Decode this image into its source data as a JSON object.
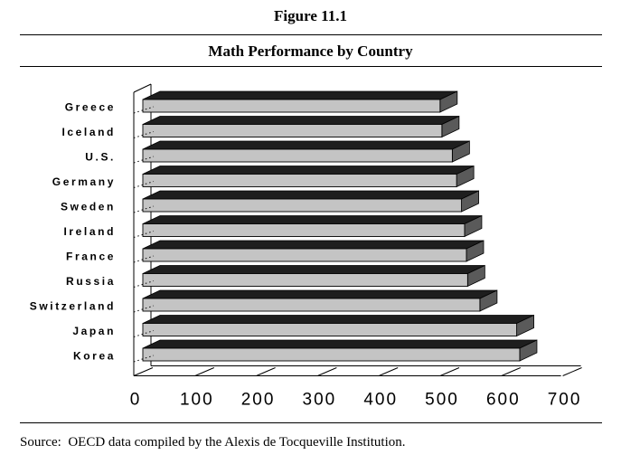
{
  "figure_label": "Figure 11.1",
  "source_note": "Source:  OECD data compiled by the Alexis de Tocqueville Institution.",
  "chart_data": {
    "type": "bar",
    "orientation": "horizontal",
    "three_d": true,
    "title": "Math Performance by Country",
    "xlabel": "",
    "ylabel": "",
    "categories": [
      "Greece",
      "Iceland",
      "U.S.",
      "Germany",
      "Sweden",
      "Ireland",
      "France",
      "Russia",
      "Switzerland",
      "Japan",
      "Korea"
    ],
    "values": [
      485,
      488,
      505,
      512,
      520,
      525,
      528,
      530,
      550,
      610,
      615
    ],
    "xlim": [
      0,
      700
    ],
    "xticks": [
      "0",
      "100",
      "200",
      "300",
      "400",
      "500",
      "600",
      "700"
    ],
    "grid": false,
    "legend": "none",
    "colors": {
      "bar_face": "#c4c4c4",
      "bar_top": "#1e1e1e",
      "bar_side": "#5a5a5a"
    }
  }
}
